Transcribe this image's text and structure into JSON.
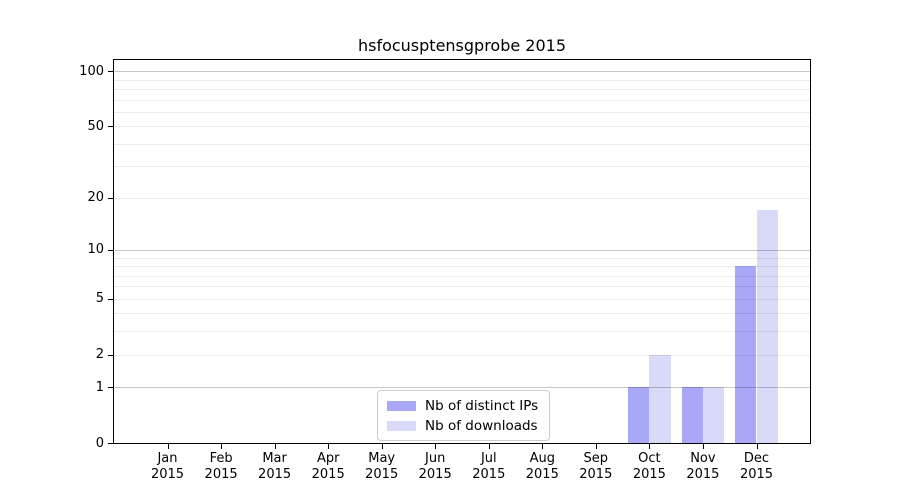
{
  "figure": {
    "background": "#ffffff"
  },
  "chart_data": {
    "type": "bar",
    "title": "hsfocusptensgprobe 2015",
    "categories": [
      "Jan 2015",
      "Feb 2015",
      "Mar 2015",
      "Apr 2015",
      "May 2015",
      "Jun 2015",
      "Jul 2015",
      "Aug 2015",
      "Sep 2015",
      "Oct 2015",
      "Nov 2015",
      "Dec 2015"
    ],
    "series": [
      {
        "name": "Nb of distinct IPs",
        "color": "#a8a8f6",
        "values": [
          0,
          0,
          0,
          0,
          0,
          0,
          0,
          0,
          0,
          1,
          1,
          8
        ]
      },
      {
        "name": "Nb of downloads",
        "color": "#d9d9f8",
        "values": [
          0,
          0,
          0,
          0,
          0,
          0,
          0,
          0,
          0,
          2,
          1,
          17
        ]
      }
    ],
    "xlabel": "",
    "ylabel": "",
    "yscale": "log1p",
    "ylim": [
      0,
      115
    ],
    "xlim": [
      -1,
      12
    ],
    "bar_width": 0.4,
    "y_ticks": [
      0,
      1,
      2,
      5,
      10,
      20,
      50,
      100
    ],
    "y_major_gridlines": [
      1,
      10,
      100
    ],
    "y_minor_gridlines": [
      2,
      3,
      4,
      5,
      6,
      7,
      8,
      9,
      20,
      30,
      40,
      50,
      60,
      70,
      80,
      90
    ],
    "grid": true,
    "legend_position": "lower center",
    "colors": {
      "axis": "#000000",
      "text": "#000000",
      "major_grid": "#c9c9c9",
      "minor_grid": "#ebebeb",
      "plot_background": "#ffffff"
    }
  }
}
